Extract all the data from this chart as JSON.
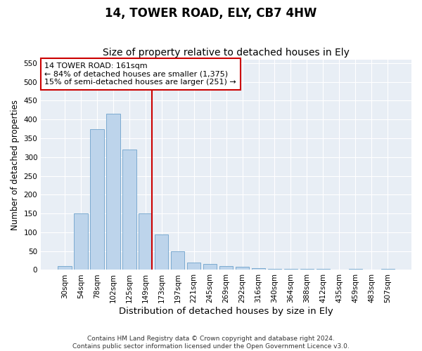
{
  "title": "14, TOWER ROAD, ELY, CB7 4HW",
  "subtitle": "Size of property relative to detached houses in Ely",
  "xlabel": "Distribution of detached houses by size in Ely",
  "ylabel": "Number of detached properties",
  "categories": [
    "30sqm",
    "54sqm",
    "78sqm",
    "102sqm",
    "125sqm",
    "149sqm",
    "173sqm",
    "197sqm",
    "221sqm",
    "245sqm",
    "269sqm",
    "292sqm",
    "316sqm",
    "340sqm",
    "364sqm",
    "388sqm",
    "412sqm",
    "435sqm",
    "459sqm",
    "483sqm",
    "507sqm"
  ],
  "values": [
    10,
    150,
    375,
    415,
    320,
    150,
    95,
    50,
    20,
    15,
    10,
    8,
    5,
    3,
    2,
    2,
    2,
    1,
    2,
    1,
    2
  ],
  "bar_color": "#bdd4eb",
  "bar_edge_color": "#6ea3cc",
  "annotation_title": "14 TOWER ROAD: 161sqm",
  "annotation_line1": "← 84% of detached houses are smaller (1,375)",
  "annotation_line2": "15% of semi-detached houses are larger (251) →",
  "annotation_box_color": "#ffffff",
  "annotation_box_edge_color": "#cc0000",
  "vline_color": "#cc0000",
  "vline_x": 5.42,
  "ylim": [
    0,
    560
  ],
  "yticks": [
    0,
    50,
    100,
    150,
    200,
    250,
    300,
    350,
    400,
    450,
    500,
    550
  ],
  "bg_color": "#ffffff",
  "plot_bg_color": "#e8eef5",
  "footer_line1": "Contains HM Land Registry data © Crown copyright and database right 2024.",
  "footer_line2": "Contains public sector information licensed under the Open Government Licence v3.0.",
  "title_fontsize": 12,
  "subtitle_fontsize": 10,
  "xlabel_fontsize": 9.5,
  "ylabel_fontsize": 8.5,
  "tick_fontsize": 7.5,
  "annotation_fontsize": 8,
  "footer_fontsize": 6.5
}
